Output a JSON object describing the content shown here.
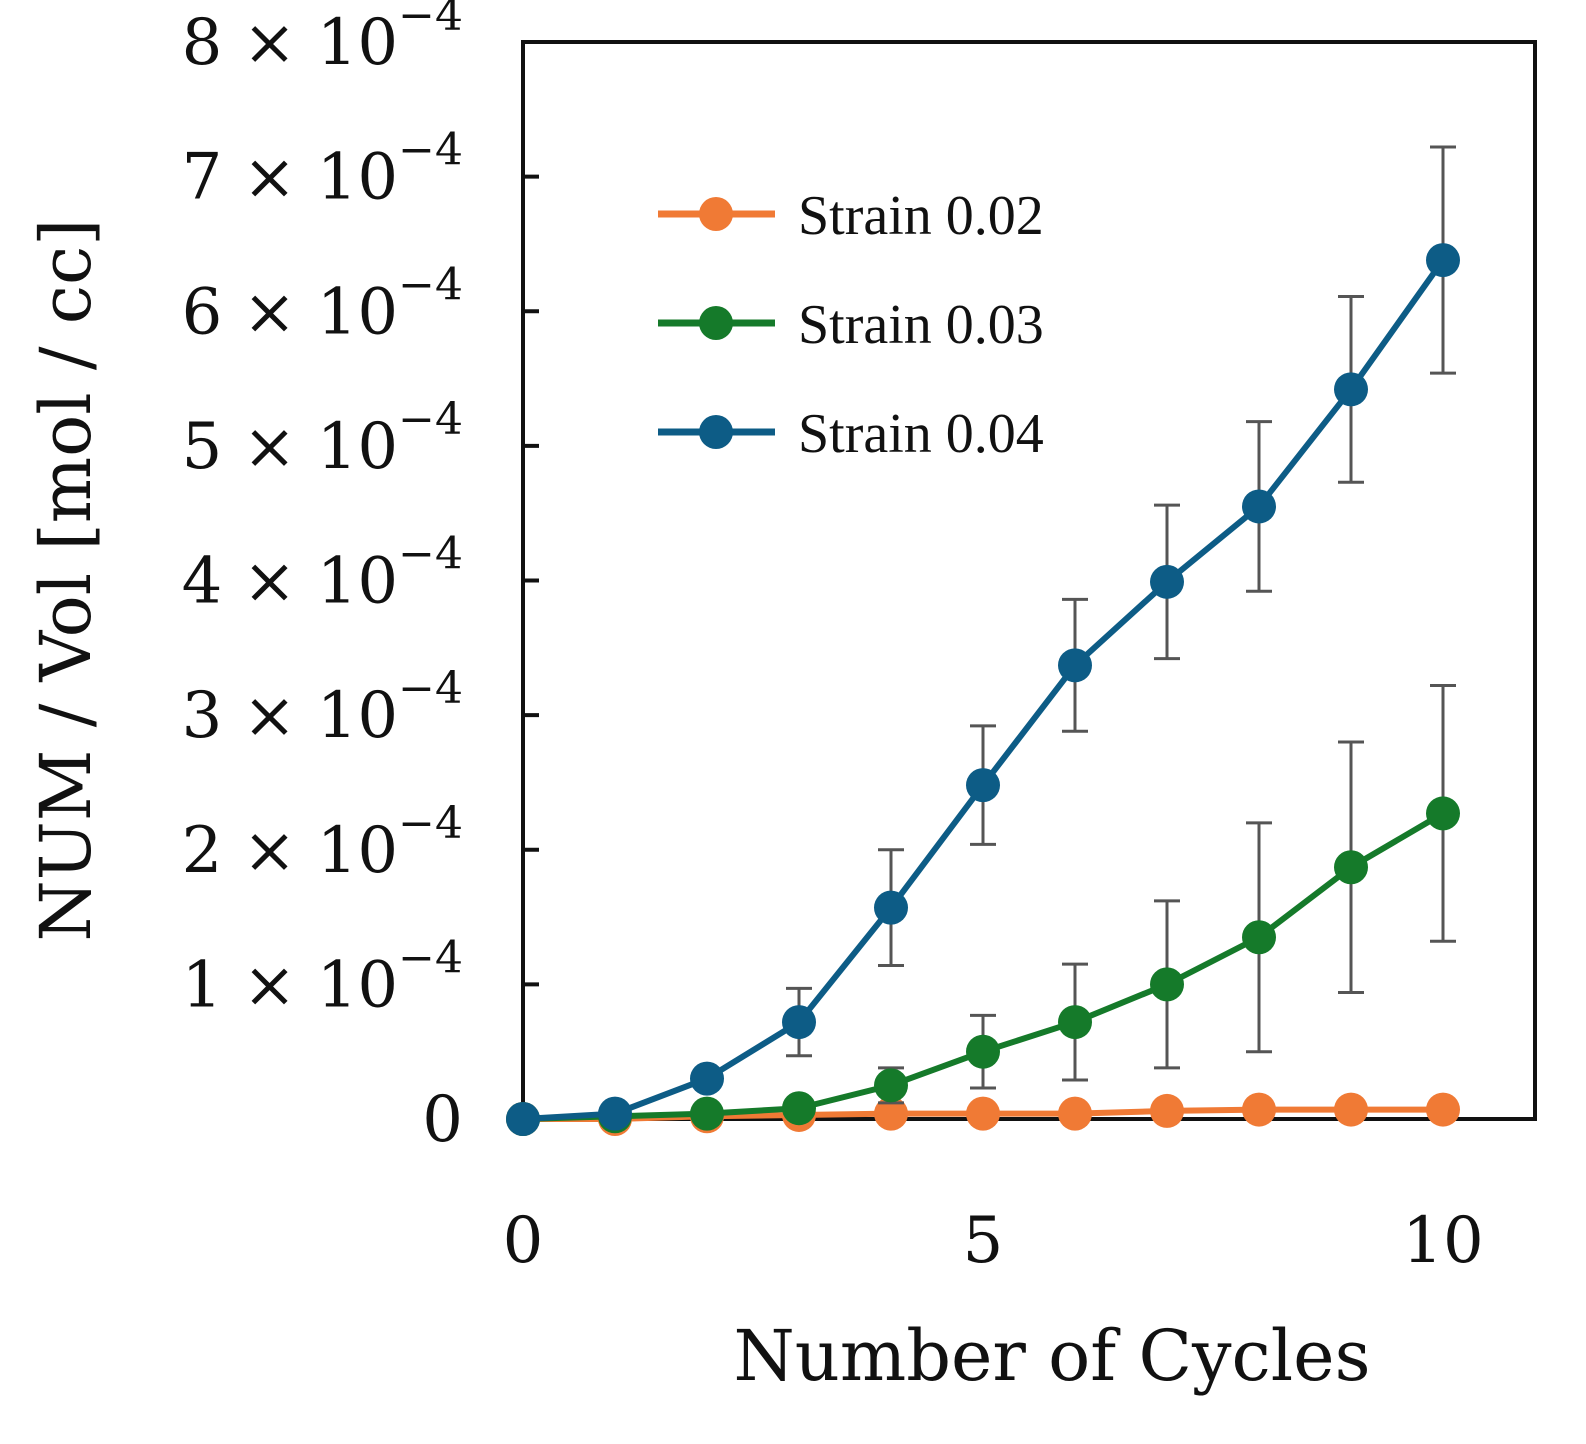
{
  "chart_data": {
    "type": "line",
    "title": "",
    "xlabel": "Number of Cycles",
    "ylabel": "NUM / Vol [mol / cc]",
    "xlim": [
      0,
      11
    ],
    "ylim": [
      0,
      0.0008
    ],
    "x_ticks": [
      0,
      5,
      10
    ],
    "x_tick_labels": [
      "0",
      "5",
      "10"
    ],
    "y_ticks": [
      0,
      0.0001,
      0.0002,
      0.0003,
      0.0004,
      0.0005,
      0.0006,
      0.0007,
      0.0008
    ],
    "y_tick_labels": [
      {
        "mantissa": "0",
        "base": "",
        "exponent": ""
      },
      {
        "mantissa": "1",
        "base": "× 10",
        "exponent": "−4"
      },
      {
        "mantissa": "2",
        "base": "× 10",
        "exponent": "−4"
      },
      {
        "mantissa": "3",
        "base": "× 10",
        "exponent": "−4"
      },
      {
        "mantissa": "4",
        "base": "× 10",
        "exponent": "−4"
      },
      {
        "mantissa": "5",
        "base": "× 10",
        "exponent": "−4"
      },
      {
        "mantissa": "6",
        "base": "× 10",
        "exponent": "−4"
      },
      {
        "mantissa": "7",
        "base": "× 10",
        "exponent": "−4"
      },
      {
        "mantissa": "8",
        "base": "× 10",
        "exponent": "−4"
      }
    ],
    "grid": false,
    "legend_position": "top-left",
    "x": [
      0,
      1,
      2,
      3,
      4,
      5,
      6,
      7,
      8,
      9,
      10
    ],
    "series": [
      {
        "name": "Strain 0.02",
        "color": "#f07a35",
        "values": [
          0,
          0,
          2e-06,
          3e-06,
          4e-06,
          4e-06,
          4e-06,
          6e-06,
          7e-06,
          7e-06,
          7e-06
        ],
        "error": [
          0,
          0,
          0,
          0,
          0,
          0,
          0,
          0,
          0,
          0,
          5e-06
        ]
      },
      {
        "name": "Strain 0.03",
        "color": "#157a2a",
        "values": [
          0,
          2e-06,
          4e-06,
          8e-06,
          2.5e-05,
          5e-05,
          7.2e-05,
          0.0001,
          0.000135,
          0.000187,
          0.000227
        ],
        "error": [
          0,
          0,
          0,
          0,
          1.3e-05,
          2.7e-05,
          4.3e-05,
          6.2e-05,
          8.5e-05,
          9.3e-05,
          9.5e-05
        ]
      },
      {
        "name": "Strain 0.04",
        "color": "#0d5c86",
        "values": [
          0,
          4e-06,
          3e-05,
          7.2e-05,
          0.000157,
          0.000248,
          0.000337,
          0.000399,
          0.000455,
          0.000542,
          0.000638
        ],
        "error": [
          0,
          0,
          7e-06,
          2.5e-05,
          4.3e-05,
          4.4e-05,
          4.9e-05,
          5.7e-05,
          6.3e-05,
          6.9e-05,
          8.4e-05
        ]
      }
    ]
  }
}
